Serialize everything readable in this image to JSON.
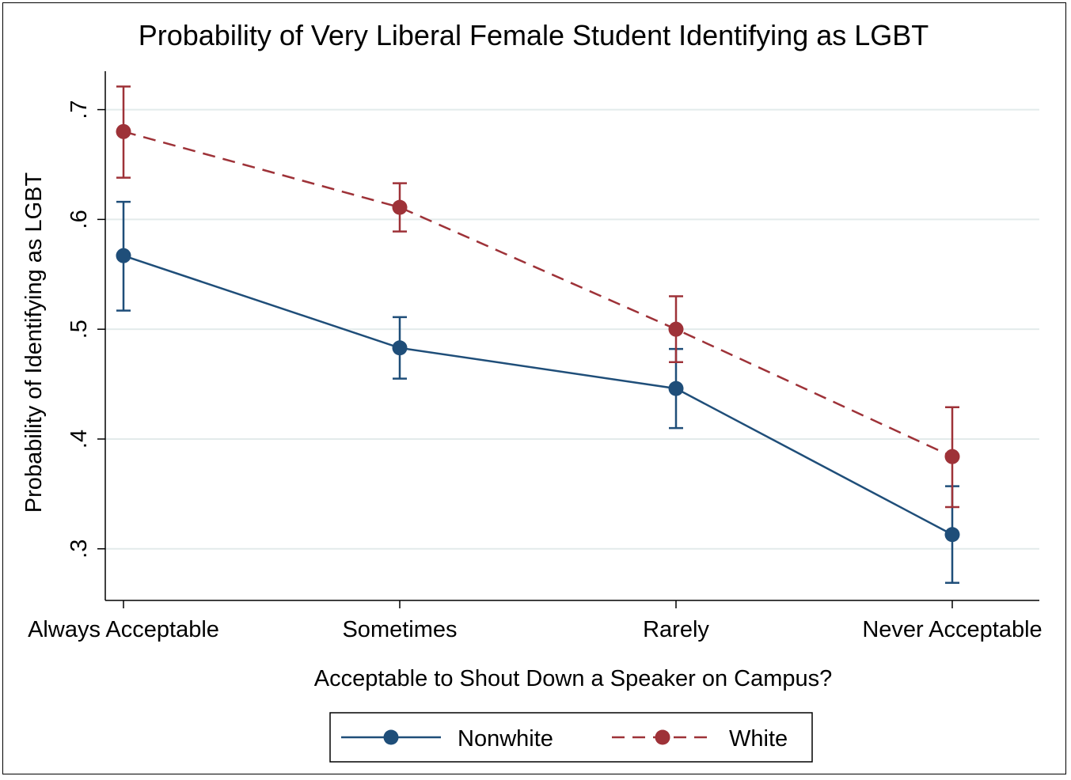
{
  "chart_data": {
    "type": "line",
    "title": "Probability of Very Liberal Female Student Identifying as LGBT",
    "xlabel": "Acceptable to Shout Down a Speaker on Campus?",
    "ylabel": "Probability of Identifying as LGBT",
    "categories": [
      "Always Acceptable",
      "Sometimes",
      "Rarely",
      "Never Acceptable"
    ],
    "yticks": [
      0.3,
      0.4,
      0.5,
      0.6,
      0.7
    ],
    "ytick_labels": [
      ".3",
      ".4",
      ".5",
      ".6",
      ".7"
    ],
    "ylim": [
      0.253,
      0.735
    ],
    "grid": true,
    "legend_position": "bottom",
    "series": [
      {
        "name": "Nonwhite",
        "color": "#1f4e79",
        "line_style": "solid",
        "values": [
          0.567,
          0.483,
          0.446,
          0.313
        ],
        "ci_low": [
          0.517,
          0.455,
          0.41,
          0.269
        ],
        "ci_high": [
          0.616,
          0.511,
          0.482,
          0.357
        ]
      },
      {
        "name": "White",
        "color": "#9e3238",
        "line_style": "dashed",
        "values": [
          0.68,
          0.611,
          0.5,
          0.384
        ],
        "ci_low": [
          0.638,
          0.589,
          0.47,
          0.338
        ],
        "ci_high": [
          0.721,
          0.633,
          0.53,
          0.429
        ]
      }
    ]
  }
}
